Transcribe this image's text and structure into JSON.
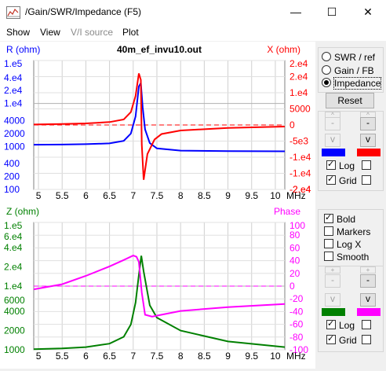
{
  "window": {
    "title": "/Gain/SWR/Impedance (F5)",
    "minimize_glyph": "—",
    "maximize_glyph": "☐",
    "close_glyph": "✕"
  },
  "menu": {
    "show": "Show",
    "view": "View",
    "vi_source": "V/I source",
    "plot": "Plot"
  },
  "colors": {
    "blue": "#0000ff",
    "red": "#ff0000",
    "green": "#008000",
    "magenta": "#ff00ff",
    "swatch_blue": "#0000ff",
    "swatch_red": "#ff0000",
    "swatch_green": "#008000",
    "swatch_magenta": "#ff00ff"
  },
  "chart_data": [
    {
      "type": "line",
      "title": "40m_ef_invu10.out",
      "ylabel_left": "R (ohm)",
      "ylabel_right": "X (ohm)",
      "x_unit": "MHz",
      "xlim": [
        4.9,
        10.2
      ],
      "x_ticks": [
        "5",
        "5.5",
        "6",
        "6.5",
        "7",
        "7.5",
        "8",
        "8.5",
        "9",
        "9.5",
        "10"
      ],
      "y_left_scale": "log",
      "y_left_ticks": [
        "1.e5",
        "4.e4",
        "2.e4",
        "1.e4",
        "4000",
        "2000",
        "1000",
        "400",
        "200",
        "100"
      ],
      "y_right_ticks": [
        "2.e4",
        "2.e4",
        "1.e4",
        "5000",
        "0",
        "-5e3",
        "-1.e4",
        "-1.e4",
        "-2.e4",
        "-2.e4"
      ],
      "series": [
        {
          "color": "blue",
          "x": [
            4.9,
            5.5,
            6,
            6.5,
            6.8,
            6.95,
            7.05,
            7.12,
            7.16,
            7.2,
            7.25,
            7.35,
            7.5,
            8,
            9,
            10.2
          ],
          "y": [
            1100,
            1110,
            1130,
            1180,
            1350,
            2000,
            5000,
            25000,
            30000,
            8000,
            2500,
            1200,
            900,
            800,
            780,
            770
          ]
        },
        {
          "color": "red",
          "x": [
            4.9,
            5.5,
            6,
            6.5,
            6.8,
            6.95,
            7.05,
            7.12,
            7.16,
            7.18,
            7.22,
            7.3,
            7.45,
            7.6,
            8,
            9,
            10.2
          ],
          "y": [
            150,
            300,
            500,
            900,
            1700,
            4000,
            9000,
            16000,
            14000,
            -6000,
            -17000,
            -9000,
            -4500,
            -2800,
            -1700,
            -900,
            -500
          ]
        }
      ],
      "dashed_zero_line": true
    },
    {
      "type": "line",
      "ylabel_left": "Z (ohm)",
      "ylabel_right": "Phase",
      "x_unit": "MHz",
      "xlim": [
        4.9,
        10.2
      ],
      "x_ticks": [
        "5",
        "5.5",
        "6",
        "6.5",
        "7",
        "7.5",
        "8",
        "8.5",
        "9",
        "9.5",
        "10"
      ],
      "y_left_scale": "log",
      "y_left_ticks": [
        "1.e5",
        "6.e4",
        "4.e4",
        "2.e4",
        "1.e4",
        "6000",
        "4000",
        "2000",
        "1000"
      ],
      "y_right_ticks": [
        "100",
        "80",
        "60",
        "40",
        "20",
        "0",
        "-20",
        "-40",
        "-60",
        "-80",
        "-100"
      ],
      "series": [
        {
          "color": "green",
          "x": [
            4.9,
            5.5,
            6,
            6.5,
            6.8,
            6.95,
            7.05,
            7.12,
            7.17,
            7.22,
            7.35,
            7.5,
            8,
            9,
            10.2
          ],
          "y": [
            1020,
            1050,
            1100,
            1250,
            1600,
            2500,
            5500,
            15000,
            30000,
            17000,
            5000,
            3200,
            2000,
            1350,
            1100
          ]
        },
        {
          "color": "magenta",
          "x": [
            4.9,
            5.5,
            6,
            6.5,
            6.8,
            7,
            7.07,
            7.12,
            7.18,
            7.25,
            7.4,
            7.6,
            8,
            9,
            10.2
          ],
          "y": [
            -5,
            3,
            16,
            31,
            41,
            48,
            46,
            38,
            -10,
            -45,
            -48,
            -45,
            -39,
            -33,
            -28
          ]
        }
      ],
      "dashed_zero_line": true
    }
  ],
  "panel": {
    "radio_swr": "SWR / ref",
    "radio_gain": "Gain / FB",
    "radio_impedance": "Impedance",
    "reset": "Reset",
    "step_up": "^",
    "step_down": "v",
    "minus": "-",
    "plus": "+",
    "log": "Log",
    "grid": "Grid",
    "bold": "Bold",
    "markers": "Markers",
    "logx": "Log X",
    "smooth": "Smooth"
  }
}
